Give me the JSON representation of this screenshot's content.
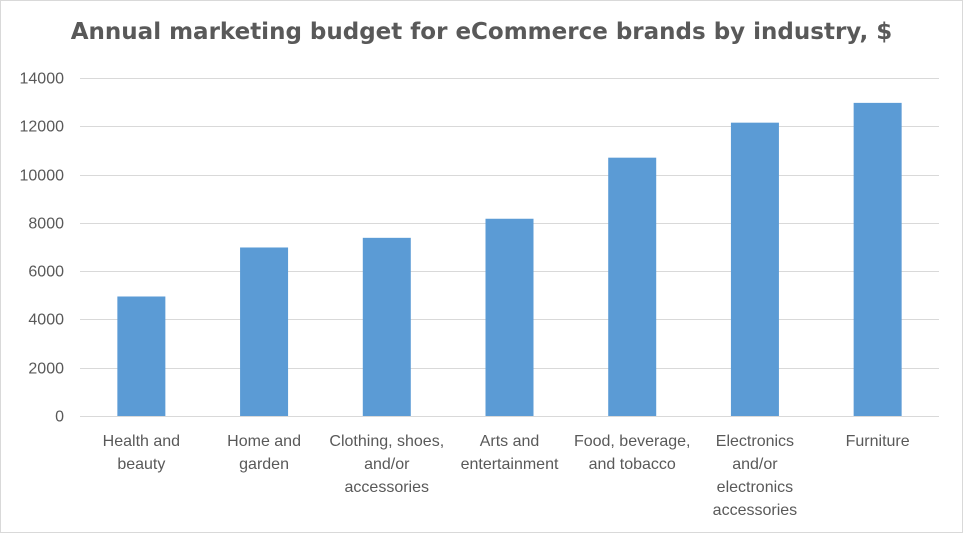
{
  "chart_data": {
    "type": "bar",
    "title": "Annual marketing budget for eCommerce brands by industry, $",
    "xlabel": "",
    "ylabel": "",
    "ylim": [
      0,
      14000
    ],
    "yticks": [
      0,
      2000,
      4000,
      6000,
      8000,
      10000,
      12000,
      14000
    ],
    "grid": true,
    "legend": "none",
    "bar_color": "#5b9bd5",
    "categories": [
      [
        "Health and",
        "beauty"
      ],
      [
        "Home and",
        "garden"
      ],
      [
        "Clothing, shoes,",
        "and/or",
        "accessories"
      ],
      [
        "Arts and",
        "entertainment"
      ],
      [
        "Food, beverage,",
        "and tobacco"
      ],
      [
        "Electronics",
        "and/or",
        "electronics",
        "accessories"
      ],
      [
        "Furniture"
      ]
    ],
    "values": [
      4950,
      6980,
      7380,
      8170,
      10700,
      12150,
      12970
    ]
  }
}
